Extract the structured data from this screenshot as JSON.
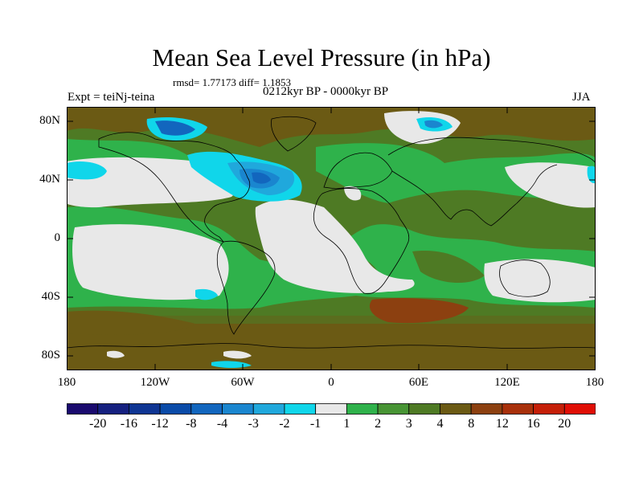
{
  "title": "Mean Sea Level Pressure (in hPa)",
  "stats": "rmsd= 1.77173 diff= 1.1853",
  "period": "0212kyr BP - 0000kyr BP",
  "experiment": "Expt = teiNj-teina",
  "season": "JJA",
  "lat_labels": [
    "80N",
    "40N",
    "0",
    "40S",
    "80S"
  ],
  "lon_labels": [
    "180",
    "120W",
    "60W",
    "0",
    "60E",
    "120E",
    "180"
  ],
  "colorbar": {
    "labels": [
      "-20",
      "-16",
      "-12",
      "-8",
      "-4",
      "-3",
      "-2",
      "-1",
      "1",
      "2",
      "3",
      "4",
      "8",
      "12",
      "16",
      "20"
    ],
    "colors": [
      "#1a0a6e",
      "#15207f",
      "#0f3593",
      "#0a4ba8",
      "#1266be",
      "#1a86cf",
      "#20a8dc",
      "#10d6ea",
      "#e8e8e8",
      "#2fb24b",
      "#479434",
      "#4e7a24",
      "#6b5a14",
      "#8c4010",
      "#a8300b",
      "#c51f08",
      "#e00e05"
    ]
  },
  "colors": {
    "land_outline": "#000000",
    "pacific_neutral": "#e8e8e8",
    "southern_ocean": "#6b5a14"
  }
}
